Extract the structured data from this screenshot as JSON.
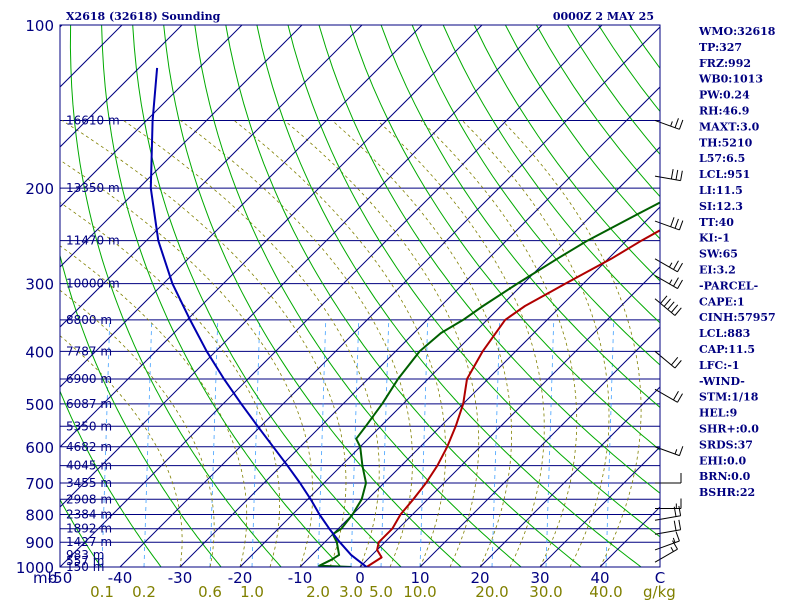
{
  "header": {
    "station": "X2618 (32618) Sounding",
    "time": "0000Z  2 MAY 25"
  },
  "axis": {
    "unit_label": "mb",
    "mixing_unit": "g/kg"
  },
  "indices": [
    "WMO:32618",
    "TP:327",
    "FRZ:992",
    "WB0:1013",
    "PW:0.24",
    "RH:46.9",
    "MAXT:3.0",
    "TH:5210",
    "L57:6.5",
    "LCL:951",
    "LI:11.5",
    "SI:12.3",
    "TT:40",
    "KI:-1",
    "SW:65",
    "EI:3.2",
    "-PARCEL-",
    "CAPE:1",
    "CINH:57957",
    "LCL:883",
    "CAP:11.5",
    "LFC:-1",
    "-WIND-",
    "STM:1/18",
    "HEL:9",
    "SHR+:0.0",
    "SRDS:37",
    "EHI:0.0",
    "BRN:0.0",
    "BSHR:22"
  ],
  "colors": {
    "frame": "#000080",
    "isobar": "#000080",
    "isotherm": "#000080",
    "dry_adiabat": "#00aa00",
    "moist_adiabat": "#808000",
    "mixing_ratio": "#40a0ff",
    "temperature": "#b00000",
    "dewpoint": "#006000",
    "parcel": "#0000b0",
    "text": "#000080",
    "mixing_label": "#808000",
    "wind": "#000000"
  },
  "chart_data": {
    "type": "line",
    "subtype": "skew-T log-p sounding",
    "x_range_c": [
      -50,
      50
    ],
    "p_range_mb": [
      1000,
      100
    ],
    "isobars_mb": [
      1000,
      900,
      800,
      700,
      600,
      500,
      400,
      300,
      200,
      100
    ],
    "isobar_minor_mb": [
      850,
      750,
      650,
      550,
      450,
      350,
      250,
      150
    ],
    "pressure_tick_labels": [
      "100",
      "200",
      "300",
      "400",
      "500",
      "600",
      "700",
      "800",
      "900",
      "1000"
    ],
    "temperature_tick_labels": [
      "-50",
      "-40",
      "-30",
      "-20",
      "-10",
      "0",
      "10",
      "20",
      "30",
      "40",
      "C"
    ],
    "temperature_ticks_c": [
      -50,
      -40,
      -30,
      -20,
      -10,
      0,
      10,
      20,
      30,
      40
    ],
    "mixing_ratio_labels": [
      "0.1",
      "0.2",
      "0.6",
      "1.0",
      "2.0",
      "3.0",
      "5.0",
      "10.0",
      "20.0",
      "30.0",
      "40.0"
    ],
    "mixing_ratio_label_positions_c": [
      -43,
      -36,
      -25,
      -18,
      -7,
      -1.5,
      3.5,
      10,
      22,
      31,
      41
    ],
    "height_levels": [
      {
        "p": 1000,
        "label": "150 m"
      },
      {
        "p": 975,
        "label": "557 m"
      },
      {
        "p": 950,
        "label": "983 m"
      },
      {
        "p": 900,
        "label": "1427 m"
      },
      {
        "p": 850,
        "label": "1892 m"
      },
      {
        "p": 800,
        "label": "2384 m"
      },
      {
        "p": 750,
        "label": "2908 m"
      },
      {
        "p": 700,
        "label": "3455 m"
      },
      {
        "p": 650,
        "label": "4045 m"
      },
      {
        "p": 600,
        "label": "4682 m"
      },
      {
        "p": 550,
        "label": "5350 m"
      },
      {
        "p": 500,
        "label": "6087 m"
      },
      {
        "p": 450,
        "label": "6900 m"
      },
      {
        "p": 400,
        "label": "7787 m"
      },
      {
        "p": 350,
        "label": "8800 m"
      },
      {
        "p": 300,
        "label": "10000 m"
      },
      {
        "p": 250,
        "label": "11470 m"
      },
      {
        "p": 200,
        "label": "13350 m"
      },
      {
        "p": 150,
        "label": "16610 m"
      }
    ],
    "series": [
      {
        "kind": "temperature",
        "points": [
          [
            1000,
            1.1
          ],
          [
            960,
            2.0
          ],
          [
            930,
            0.0
          ],
          [
            900,
            -1.0
          ],
          [
            850,
            -1.0
          ],
          [
            800,
            -2.0
          ],
          [
            750,
            -2.4
          ],
          [
            700,
            -3.0
          ],
          [
            650,
            -4.0
          ],
          [
            600,
            -5.5
          ],
          [
            550,
            -7.5
          ],
          [
            500,
            -10.0
          ],
          [
            450,
            -13.5
          ],
          [
            400,
            -15.5
          ],
          [
            350,
            -17.0
          ],
          [
            330,
            -16.0
          ],
          [
            310,
            -14.0
          ],
          [
            300,
            -13.0
          ],
          [
            270,
            -9.5
          ],
          [
            250,
            -7.5
          ],
          [
            220,
            -3.5
          ],
          [
            200,
            -1.0
          ],
          [
            190,
            0.5
          ],
          [
            180,
            2.0
          ],
          [
            170,
            4.5
          ],
          [
            160,
            7.5
          ],
          [
            150,
            10.0
          ],
          [
            140,
            13.0
          ],
          [
            130,
            15.5
          ],
          [
            120,
            18.0
          ],
          [
            110,
            21.0
          ],
          [
            100,
            23.5
          ]
        ]
      },
      {
        "kind": "dewpoint",
        "points": [
          [
            1000,
            -1.4
          ],
          [
            995,
            -7.0
          ],
          [
            970,
            -6.0
          ],
          [
            950,
            -5.5
          ],
          [
            900,
            -8.0
          ],
          [
            870,
            -10.0
          ],
          [
            850,
            -9.5
          ],
          [
            800,
            -10.0
          ],
          [
            750,
            -11.0
          ],
          [
            700,
            -13.0
          ],
          [
            650,
            -16.5
          ],
          [
            600,
            -20.0
          ],
          [
            580,
            -22.0
          ],
          [
            550,
            -22.5
          ],
          [
            500,
            -23.5
          ],
          [
            450,
            -25.0
          ],
          [
            400,
            -26.0
          ],
          [
            370,
            -25.5
          ],
          [
            350,
            -24.0
          ],
          [
            330,
            -23.0
          ],
          [
            300,
            -21.0
          ],
          [
            270,
            -18.5
          ],
          [
            250,
            -16.5
          ],
          [
            220,
            -12.0
          ],
          [
            200,
            -8.5
          ],
          [
            180,
            -4.5
          ],
          [
            160,
            -1.0
          ],
          [
            150,
            0.5
          ],
          [
            140,
            2.0
          ],
          [
            130,
            4.0
          ],
          [
            120,
            5.5
          ],
          [
            110,
            7.5
          ],
          [
            100,
            9.0
          ]
        ]
      },
      {
        "kind": "parcel",
        "points": [
          [
            1000,
            1.1
          ],
          [
            950,
            -3.5
          ],
          [
            900,
            -7.5
          ],
          [
            850,
            -11.5
          ],
          [
            800,
            -15.5
          ],
          [
            750,
            -19.5
          ],
          [
            700,
            -24.0
          ],
          [
            650,
            -29.0
          ],
          [
            600,
            -34.5
          ],
          [
            550,
            -40.5
          ],
          [
            500,
            -47.0
          ],
          [
            450,
            -54.0
          ],
          [
            400,
            -61.5
          ],
          [
            350,
            -69.5
          ],
          [
            300,
            -78.5
          ],
          [
            250,
            -88.0
          ],
          [
            200,
            -98.0
          ],
          [
            150,
            -109.0
          ],
          [
            120,
            -117.0
          ]
        ]
      }
    ],
    "wind_barbs": [
      {
        "p": 980,
        "dir": 300,
        "spd": 15
      },
      {
        "p": 930,
        "dir": 290,
        "spd": 15
      },
      {
        "p": 870,
        "dir": 280,
        "spd": 20
      },
      {
        "p": 820,
        "dir": 280,
        "spd": 20
      },
      {
        "p": 780,
        "dir": 270,
        "spd": 15
      },
      {
        "p": 700,
        "dir": 270,
        "spd": 10
      },
      {
        "p": 600,
        "dir": 250,
        "spd": 15
      },
      {
        "p": 470,
        "dir": 240,
        "spd": 20
      },
      {
        "p": 400,
        "dir": 230,
        "spd": 20
      },
      {
        "p": 320,
        "dir": 230,
        "spd": 50
      },
      {
        "p": 290,
        "dir": 240,
        "spd": 25
      },
      {
        "p": 270,
        "dir": 240,
        "spd": 25
      },
      {
        "p": 230,
        "dir": 250,
        "spd": 30
      },
      {
        "p": 190,
        "dir": 260,
        "spd": 30
      },
      {
        "p": 150,
        "dir": 250,
        "spd": 25
      }
    ]
  }
}
